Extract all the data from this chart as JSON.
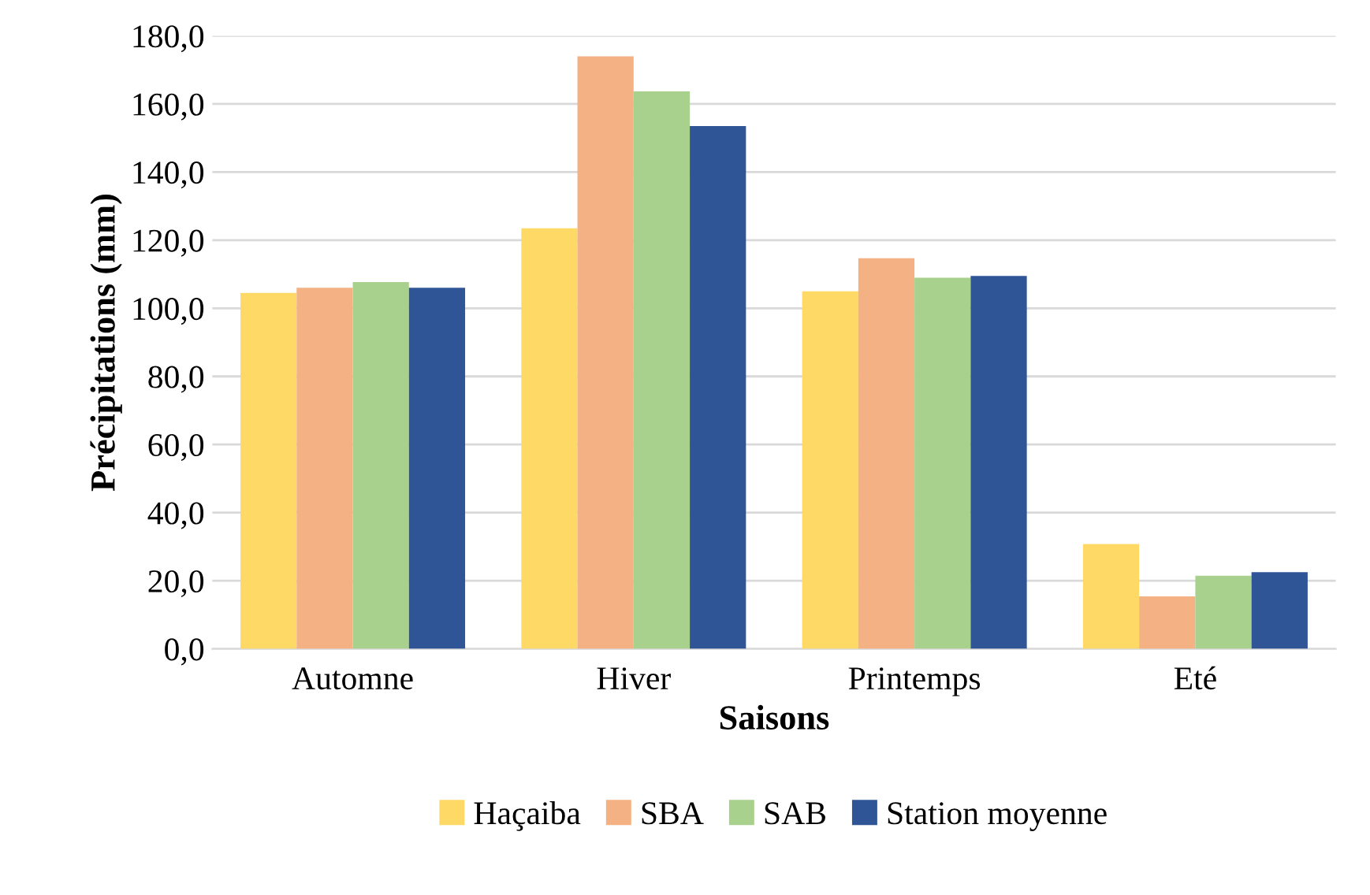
{
  "chart_data": {
    "type": "bar",
    "xlabel": "Saisons",
    "ylabel": "Précipitations (mm)",
    "categories": [
      "Automne",
      "Hiver",
      "Printemps",
      "Eté"
    ],
    "series": [
      {
        "name": "Haçaiba",
        "color": "#ffd966",
        "values": [
          104.5,
          123.5,
          105,
          30.8
        ]
      },
      {
        "name": "SBA",
        "color": "#f4b183",
        "values": [
          106,
          174,
          114.7,
          15.4
        ]
      },
      {
        "name": "SAB",
        "color": "#a9d18e",
        "values": [
          107.7,
          163.7,
          109,
          21.5
        ]
      },
      {
        "name": "Station moyenne",
        "color": "#2f5597",
        "values": [
          106,
          153.5,
          109.5,
          22.5
        ]
      }
    ],
    "ylim": [
      0,
      180
    ],
    "yticks": [
      {
        "value": 0,
        "label": "0,0"
      },
      {
        "value": 20,
        "label": "20,0"
      },
      {
        "value": 40,
        "label": "40,0"
      },
      {
        "value": 60,
        "label": "60,0"
      },
      {
        "value": 80,
        "label": "80,0"
      },
      {
        "value": 100,
        "label": "100,0"
      },
      {
        "value": 120,
        "label": "120,0"
      },
      {
        "value": 140,
        "label": "140,0"
      },
      {
        "value": 160,
        "label": "160,0"
      },
      {
        "value": 180,
        "label": "180,0"
      }
    ],
    "grid": "y",
    "legend": "bottom"
  }
}
